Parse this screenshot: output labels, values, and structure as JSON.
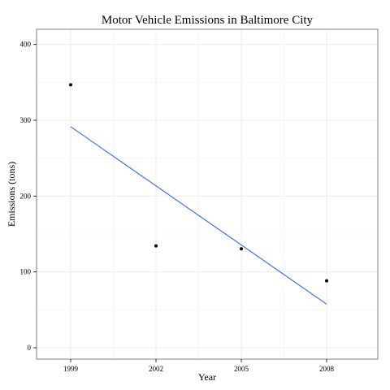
{
  "chart_data": {
    "type": "scatter",
    "title": "Motor Vehicle Emissions in Baltimore City",
    "xlabel": "Year",
    "ylabel": "Emissions (tons)",
    "x_ticks": [
      "1999",
      "2002",
      "2005",
      "2008"
    ],
    "y_ticks": [
      "0",
      "100",
      "200",
      "300",
      "400"
    ],
    "xlim": [
      1997.8,
      2009.8
    ],
    "ylim": [
      -15,
      420
    ],
    "grid": true,
    "series": [
      {
        "x": [
          1999,
          2002,
          2005,
          2008
        ],
        "y": [
          346.8,
          134.3,
          130.4,
          88.3
        ]
      }
    ],
    "trend_line": {
      "x": [
        1999,
        2008
      ],
      "y": [
        291.5,
        57.5
      ],
      "color": "#3366ff"
    },
    "colors": {
      "points": "#000000",
      "grid": "#ececec",
      "border": "#7f7f7f"
    }
  }
}
